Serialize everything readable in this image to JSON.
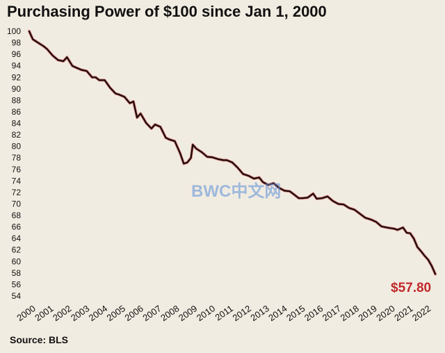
{
  "title": "Purchasing  Power of $100 since Jan 1, 2000",
  "source": "Source: BLS",
  "watermark": "BWC中文网",
  "colors": {
    "line": "#1a0a0a",
    "accent": "#c0282a",
    "background": "#f1ece1"
  },
  "chart_data": {
    "type": "line",
    "title": "Purchasing  Power of $100 since Jan 1, 2000",
    "xlabel": "",
    "ylabel": "",
    "ylim": [
      54,
      100
    ],
    "xlim": [
      2000,
      2022.75
    ],
    "yticks": [
      100,
      98,
      96,
      94,
      92,
      90,
      88,
      86,
      84,
      82,
      80,
      78,
      76,
      74,
      72,
      70,
      68,
      66,
      64,
      62,
      60,
      58,
      56,
      54
    ],
    "xticks": [
      "2000",
      "2001",
      "2002",
      "2003",
      "2004",
      "2005",
      "2006",
      "2007",
      "2008",
      "2009",
      "2010",
      "2011",
      "2012",
      "2013",
      "2014",
      "2015",
      "2016",
      "2017",
      "2018",
      "2019",
      "2020",
      "2021",
      "2022"
    ],
    "grid": false,
    "end_label": "$57.80",
    "series": [
      {
        "x": [
          2000.0,
          2000.2,
          2000.5,
          2000.8,
          2001.0,
          2001.3,
          2001.6,
          2001.9,
          2002.1,
          2002.4,
          2002.6,
          2002.9,
          2003.2,
          2003.5,
          2003.7,
          2003.9,
          2004.2,
          2004.5,
          2004.8,
          2005.0,
          2005.3,
          2005.6,
          2005.8,
          2006.0,
          2006.2,
          2006.5,
          2006.8,
          2007.0,
          2007.3,
          2007.6,
          2007.8,
          2008.1,
          2008.4,
          2008.6,
          2008.8,
          2009.0,
          2009.1,
          2009.3,
          2009.6,
          2009.9,
          2010.2,
          2010.5,
          2010.8,
          2011.0,
          2011.3,
          2011.6,
          2011.9,
          2012.2,
          2012.5,
          2012.8,
          2013.0,
          2013.3,
          2013.6,
          2013.9,
          2014.2,
          2014.5,
          2014.8,
          2015.0,
          2015.2,
          2015.5,
          2015.8,
          2016.0,
          2016.3,
          2016.6,
          2016.9,
          2017.2,
          2017.5,
          2017.8,
          2018.1,
          2018.4,
          2018.7,
          2019.0,
          2019.3,
          2019.6,
          2019.9,
          2020.1,
          2020.3,
          2020.5,
          2020.8,
          2021.0,
          2021.2,
          2021.4,
          2021.6,
          2021.8,
          2022.0,
          2022.2,
          2022.4,
          2022.6
        ],
        "values": [
          100.0,
          98.6,
          98.0,
          97.4,
          96.9,
          95.8,
          95.0,
          94.8,
          95.5,
          94.0,
          93.7,
          93.3,
          93.1,
          92.0,
          92.0,
          91.5,
          91.5,
          90.2,
          89.2,
          89.0,
          88.6,
          87.5,
          87.8,
          85.0,
          85.7,
          84.1,
          83.1,
          83.8,
          83.4,
          81.5,
          81.2,
          80.9,
          78.8,
          77.0,
          77.2,
          78.0,
          80.3,
          79.6,
          79.0,
          78.2,
          78.1,
          77.8,
          77.6,
          77.6,
          77.2,
          76.3,
          75.2,
          74.9,
          74.4,
          74.6,
          73.8,
          73.3,
          73.6,
          72.8,
          72.3,
          72.2,
          71.5,
          71.0,
          71.0,
          71.1,
          71.8,
          70.9,
          71.0,
          71.3,
          70.5,
          70.0,
          69.9,
          69.3,
          69.0,
          68.3,
          67.6,
          67.3,
          66.9,
          66.1,
          65.9,
          65.8,
          65.7,
          65.5,
          65.9,
          65.0,
          64.9,
          64.0,
          62.5,
          61.8,
          61.0,
          60.3,
          59.2,
          57.8
        ]
      }
    ]
  }
}
